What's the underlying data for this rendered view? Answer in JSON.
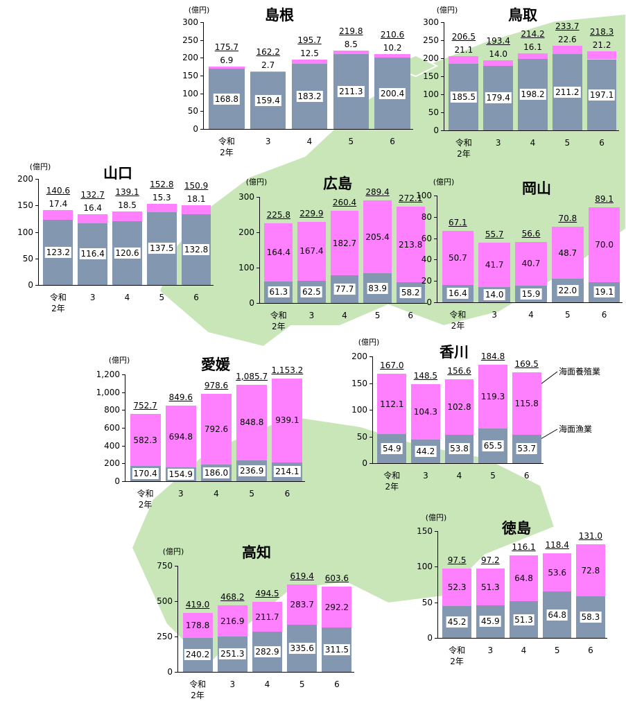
{
  "chart_data": [
    {
      "type": "bar",
      "title": "島根",
      "unit": "(億円)",
      "categories": [
        "令和2年",
        "3",
        "4",
        "5",
        "6"
      ],
      "ylim": [
        0,
        300
      ],
      "yticks": [
        0,
        50,
        100,
        150,
        200,
        250,
        300
      ],
      "series": [
        {
          "color": "#8497b0",
          "values": [
            168.8,
            159.4,
            183.2,
            211.3,
            200.4
          ]
        },
        {
          "color": "#ff80ff",
          "values": [
            6.9,
            2.7,
            12.5,
            8.5,
            10.2
          ]
        }
      ],
      "totals": [
        175.7,
        162.2,
        195.7,
        219.8,
        210.6
      ]
    },
    {
      "type": "bar",
      "title": "鳥取",
      "unit": "(億円)",
      "categories": [
        "令和2年",
        "3",
        "4",
        "5",
        "6"
      ],
      "ylim": [
        0,
        300
      ],
      "yticks": [
        0,
        50,
        100,
        150,
        200,
        250,
        300
      ],
      "series": [
        {
          "color": "#8497b0",
          "values": [
            185.5,
            179.4,
            198.2,
            211.2,
            197.1
          ]
        },
        {
          "color": "#ff80ff",
          "values": [
            21.1,
            14.0,
            16.1,
            22.6,
            21.2
          ],
          "value_labels": [
            "21.1",
            "14.0",
            "16.1",
            "22.6",
            "21.2"
          ]
        }
      ],
      "totals": [
        206.5,
        193.4,
        214.2,
        233.7,
        218.3
      ]
    },
    {
      "type": "bar",
      "title": "山口",
      "unit": "(億円)",
      "categories": [
        "令和2年",
        "3",
        "4",
        "5",
        "6"
      ],
      "ylim": [
        0,
        200
      ],
      "yticks": [
        0,
        50,
        100,
        150,
        200
      ],
      "series": [
        {
          "color": "#8497b0",
          "values": [
            123.2,
            116.4,
            120.6,
            137.5,
            132.8
          ]
        },
        {
          "color": "#ff80ff",
          "values": [
            17.4,
            16.4,
            18.5,
            15.3,
            18.1
          ]
        }
      ],
      "totals": [
        140.6,
        132.7,
        139.1,
        152.8,
        150.9
      ]
    },
    {
      "type": "bar",
      "title": "広島",
      "unit": "(億円)",
      "categories": [
        "令和2年",
        "3",
        "4",
        "5",
        "6"
      ],
      "ylim": [
        0,
        300
      ],
      "yticks": [
        0,
        100,
        200,
        300
      ],
      "series": [
        {
          "color": "#8497b0",
          "values": [
            61.3,
            62.5,
            77.7,
            83.9,
            58.2
          ]
        },
        {
          "color": "#ff80ff",
          "values": [
            164.4,
            167.4,
            182.7,
            205.4,
            213.8
          ]
        }
      ],
      "totals": [
        225.8,
        229.9,
        260.4,
        289.4,
        272.1
      ]
    },
    {
      "type": "bar",
      "title": "岡山",
      "unit": "(億円)",
      "categories": [
        "令和2年",
        "3",
        "4",
        "5",
        "6"
      ],
      "ylim": [
        0,
        100
      ],
      "yticks": [
        0,
        20,
        40,
        60,
        80,
        100
      ],
      "series": [
        {
          "color": "#8497b0",
          "values": [
            16.4,
            14.0,
            15.9,
            22.0,
            19.1
          ],
          "value_labels": [
            "16.4",
            "14.0",
            "15.9",
            "22.0",
            "19.1"
          ]
        },
        {
          "color": "#ff80ff",
          "values": [
            50.7,
            41.7,
            40.7,
            48.7,
            70.0
          ],
          "value_labels": [
            "50.7",
            "41.7",
            "40.7",
            "48.7",
            "70.0"
          ]
        }
      ],
      "totals": [
        67.1,
        55.7,
        56.6,
        70.8,
        89.1
      ]
    },
    {
      "type": "bar",
      "title": "愛媛",
      "unit": "(億円)",
      "categories": [
        "令和2年",
        "3",
        "4",
        "5",
        "6"
      ],
      "ylim": [
        0,
        1200
      ],
      "yticks": [
        0,
        200,
        400,
        600,
        800,
        {
          "value": 1000,
          "label": "1,000"
        },
        {
          "value": 1200,
          "label": "1,200"
        }
      ],
      "series": [
        {
          "color": "#8497b0",
          "values": [
            170.4,
            154.9,
            186.0,
            236.9,
            214.1
          ],
          "value_labels": [
            "170.4",
            "154.9",
            "186.0",
            "236.9",
            "214.1"
          ]
        },
        {
          "color": "#ff80ff",
          "values": [
            582.3,
            694.8,
            792.6,
            848.8,
            939.1
          ]
        }
      ],
      "totals": [
        752.7,
        849.6,
        978.6,
        1085.7,
        1153.2
      ],
      "total_labels": [
        "752.7",
        "849.6",
        "978.6",
        "1,085.7",
        "1,153.2"
      ]
    },
    {
      "type": "bar",
      "title": "香川",
      "unit": "(億円)",
      "categories": [
        "令和2年",
        "3",
        "4",
        "5",
        "6"
      ],
      "ylim": [
        0,
        200
      ],
      "yticks": [
        0,
        50,
        100,
        150,
        200
      ],
      "series": [
        {
          "name": "海面漁業",
          "color": "#8497b0",
          "values": [
            54.9,
            44.2,
            53.8,
            65.5,
            53.7
          ]
        },
        {
          "name": "海面養殖業",
          "color": "#ff80ff",
          "values": [
            112.1,
            104.3,
            102.8,
            119.3,
            115.8
          ]
        }
      ],
      "totals": [
        167.0,
        148.5,
        156.6,
        184.8,
        169.5
      ],
      "total_labels": [
        "167.0",
        "148.5",
        "156.6",
        "184.8",
        "169.5"
      ]
    },
    {
      "type": "bar",
      "title": "徳島",
      "unit": "(億円)",
      "categories": [
        "令和2年",
        "3",
        "4",
        "5",
        "6"
      ],
      "ylim": [
        0,
        150
      ],
      "yticks": [
        0,
        50,
        100,
        150
      ],
      "series": [
        {
          "color": "#8497b0",
          "values": [
            45.2,
            45.9,
            51.3,
            64.8,
            58.3
          ]
        },
        {
          "color": "#ff80ff",
          "values": [
            52.3,
            51.3,
            64.8,
            53.6,
            72.8
          ]
        }
      ],
      "totals": [
        97.5,
        97.2,
        116.1,
        118.4,
        131.0
      ],
      "total_labels": [
        "97.5",
        "97.2",
        "116.1",
        "118.4",
        "131.0"
      ]
    },
    {
      "type": "bar",
      "title": "高知",
      "unit": "(億円)",
      "categories": [
        "令和2年",
        "3",
        "4",
        "5",
        "6"
      ],
      "ylim": [
        0,
        750
      ],
      "yticks": [
        0,
        250,
        500,
        750
      ],
      "series": [
        {
          "color": "#8497b0",
          "values": [
            240.2,
            251.3,
            282.9,
            335.6,
            311.5
          ]
        },
        {
          "color": "#ff80ff",
          "values": [
            178.8,
            216.9,
            211.7,
            283.7,
            292.2
          ]
        }
      ],
      "totals": [
        419.0,
        468.2,
        494.5,
        619.4,
        603.6
      ],
      "total_labels": [
        "419.0",
        "468.2",
        "494.5",
        "619.4",
        "603.6"
      ]
    }
  ]
}
